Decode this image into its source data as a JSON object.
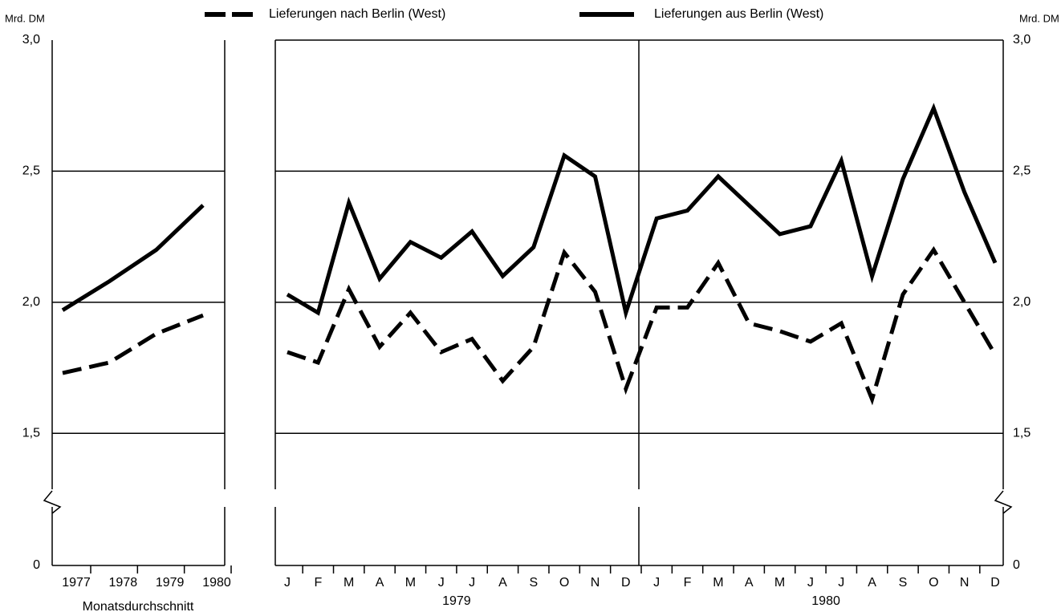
{
  "chart_data": {
    "type": "line",
    "y_label": "Mrd. DM",
    "ylim": [
      0,
      3
    ],
    "axis_break": [
      0,
      1.25
    ],
    "yticks": [
      {
        "value": 3,
        "label": "3,0"
      },
      {
        "value": 2.5,
        "label": "2,5"
      },
      {
        "value": 2,
        "label": "2,0"
      },
      {
        "value": 1.5,
        "label": "1,5"
      },
      0
    ],
    "annual": {
      "categories": [
        1977,
        1978,
        1979,
        1980
      ],
      "x_label": "Monatsdurchschnitt"
    },
    "categories": [
      "J",
      "F",
      "M",
      "A",
      "M",
      "J",
      "J",
      "A",
      "S",
      "O",
      "N",
      "D",
      "J",
      "F",
      "M",
      "A",
      "M",
      "J",
      "J",
      "A",
      "S",
      "O",
      "N",
      "D"
    ],
    "years": [
      "1979",
      "1980"
    ],
    "series": [
      {
        "name": "Lieferungen nach Berlin (West)",
        "color": "#000000",
        "dashed": true,
        "annual_values": [
          1.73,
          1.77,
          1.88,
          1.95
        ],
        "values": [
          1.81,
          1.77,
          2.05,
          1.83,
          1.96,
          1.81,
          1.86,
          1.7,
          1.83,
          2.19,
          2.04,
          1.67,
          1.98,
          1.98,
          2.15,
          1.92,
          1.89,
          1.85,
          1.92,
          1.63,
          2.03,
          2.2,
          2.0,
          1.8
        ]
      },
      {
        "name": "Lieferungen aus Berlin (West)",
        "color": "#000000",
        "dashed": false,
        "annual_values": [
          1.97,
          2.08,
          2.2,
          2.37
        ],
        "values": [
          2.03,
          1.96,
          2.38,
          2.09,
          2.23,
          2.17,
          2.27,
          2.1,
          2.21,
          2.56,
          2.48,
          1.96,
          2.32,
          2.35,
          2.48,
          2.37,
          2.26,
          2.29,
          2.54,
          2.1,
          2.47,
          2.74,
          2.42,
          2.15
        ]
      }
    ]
  }
}
